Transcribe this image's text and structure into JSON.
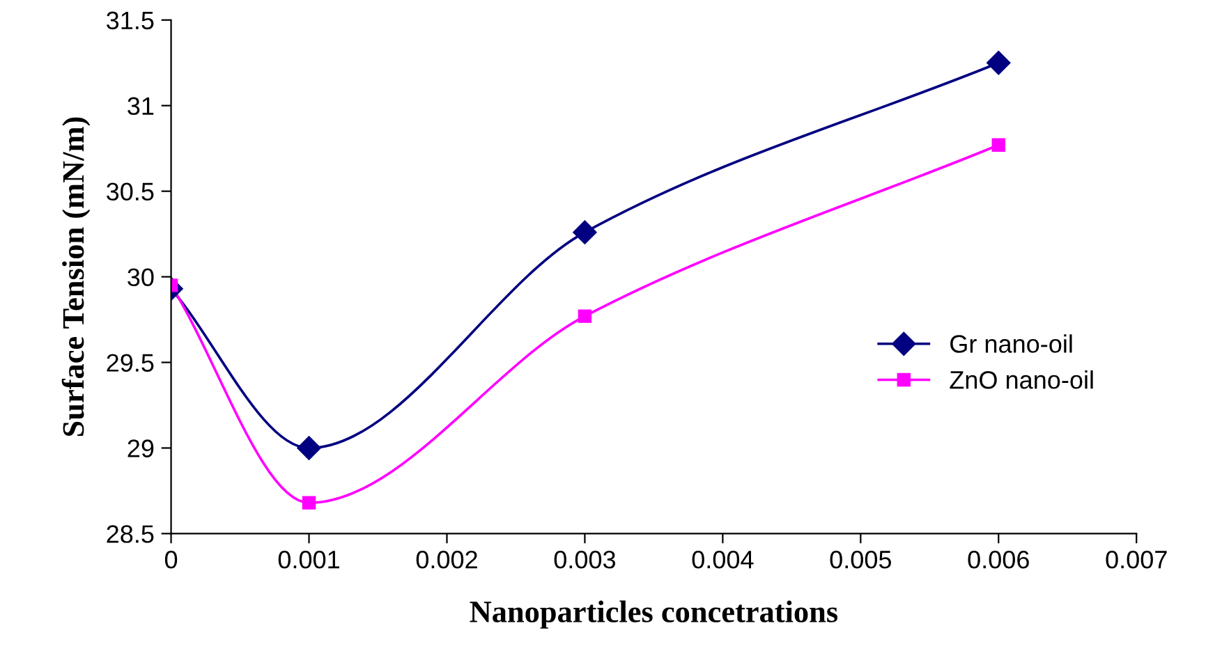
{
  "chart_data": {
    "type": "line",
    "xlabel": "Nanoparticles concetrations",
    "ylabel": "Surface Tension (mN/m)",
    "x": [
      0,
      0.001,
      0.003,
      0.006
    ],
    "series": [
      {
        "name": "Gr nano-oil",
        "color": "#000080",
        "marker": "diamond",
        "values": [
          29.93,
          29.0,
          30.26,
          31.25
        ]
      },
      {
        "name": "ZnO nano-oil",
        "color": "#ff00ff",
        "marker": "square",
        "values": [
          29.95,
          28.68,
          29.77,
          30.77
        ]
      }
    ],
    "xlim": [
      0,
      0.007
    ],
    "xticks": [
      0,
      0.001,
      0.002,
      0.003,
      0.004,
      0.005,
      0.006,
      0.007
    ],
    "ylim": [
      28.5,
      31.5
    ],
    "yticks": [
      28.5,
      29,
      29.5,
      30,
      30.5,
      31,
      31.5
    ],
    "grid": false,
    "legend": "right",
    "line_style": "solid"
  }
}
